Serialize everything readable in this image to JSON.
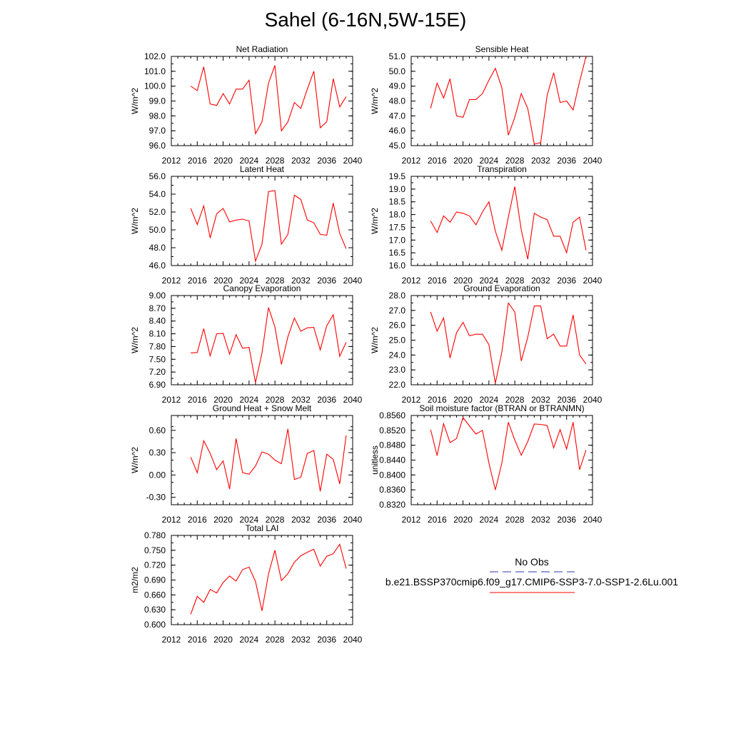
{
  "figure": {
    "title": "Sahel (6-16N,5W-15E)",
    "line_color": "#ff0000",
    "obs_color": "#3333aa"
  },
  "legend": {
    "entries": [
      {
        "label": "No Obs",
        "style": "dashed",
        "color": "#3333aa"
      },
      {
        "label": "b.e21.BSSP370cmip6.f09_g17.CMIP6-SSP3-7.0-SSP1-2.6Lu.001",
        "style": "solid",
        "color": "#ff0000"
      }
    ]
  },
  "chart_data": [
    {
      "type": "line",
      "title": "Net Radiation",
      "ylabel": "W/m^2",
      "xlim": [
        2012,
        2040
      ],
      "xticks": [
        2012,
        2016,
        2020,
        2024,
        2028,
        2032,
        2036,
        2040
      ],
      "ylim": [
        96.0,
        102.0
      ],
      "yticks": [
        "96.0",
        "97.0",
        "98.0",
        "99.0",
        "100.0",
        "101.0",
        "102.0"
      ],
      "x": [
        2015,
        2016,
        2017,
        2018,
        2019,
        2020,
        2021,
        2022,
        2023,
        2024,
        2025,
        2026,
        2027,
        2028,
        2029,
        2030,
        2031,
        2032,
        2033,
        2034,
        2035,
        2036,
        2037,
        2038,
        2039
      ],
      "series": [
        {
          "name": "b.e21.BSSP370cmip6.f09_g17.CMIP6-SSP3-7.0-SSP1-2.6Lu.001",
          "values": [
            100.0,
            99.7,
            101.3,
            98.8,
            98.7,
            99.5,
            98.8,
            99.8,
            99.8,
            100.4,
            96.8,
            97.6,
            100.2,
            101.4,
            97.0,
            97.6,
            98.9,
            98.5,
            99.8,
            101.0,
            97.2,
            97.6,
            100.5,
            98.6,
            99.3
          ]
        }
      ]
    },
    {
      "type": "line",
      "title": "Sensible Heat",
      "ylabel": "W/m^2",
      "xlim": [
        2012,
        2040
      ],
      "xticks": [
        2012,
        2016,
        2020,
        2024,
        2028,
        2032,
        2036,
        2040
      ],
      "ylim": [
        45.0,
        51.0
      ],
      "yticks": [
        "45.0",
        "46.0",
        "47.0",
        "48.0",
        "49.0",
        "50.0",
        "51.0"
      ],
      "x": [
        2015,
        2016,
        2017,
        2018,
        2019,
        2020,
        2021,
        2022,
        2023,
        2024,
        2025,
        2026,
        2027,
        2028,
        2029,
        2030,
        2031,
        2032,
        2033,
        2034,
        2035,
        2036,
        2037,
        2038,
        2039
      ],
      "series": [
        {
          "name": "b.e21.BSSP370cmip6.f09_g17.CMIP6-SSP3-7.0-SSP1-2.6Lu.001",
          "values": [
            47.5,
            49.2,
            48.2,
            49.5,
            47.0,
            46.9,
            48.1,
            48.1,
            48.5,
            49.4,
            50.2,
            48.9,
            45.7,
            46.9,
            48.5,
            47.5,
            45.1,
            45.2,
            48.4,
            49.9,
            47.9,
            48.0,
            47.4,
            49.3,
            51.0
          ]
        }
      ]
    },
    {
      "type": "line",
      "title": "Latent Heat",
      "ylabel": "W/m^2",
      "xlim": [
        2012,
        2040
      ],
      "xticks": [
        2012,
        2016,
        2020,
        2024,
        2028,
        2032,
        2036,
        2040
      ],
      "ylim": [
        46.0,
        56.0
      ],
      "yticks": [
        "46.0",
        "48.0",
        "50.0",
        "52.0",
        "54.0",
        "56.0"
      ],
      "x": [
        2015,
        2016,
        2017,
        2018,
        2019,
        2020,
        2021,
        2022,
        2023,
        2024,
        2025,
        2026,
        2027,
        2028,
        2029,
        2030,
        2031,
        2032,
        2033,
        2034,
        2035,
        2036,
        2037,
        2038,
        2039
      ],
      "series": [
        {
          "name": "b.e21.BSSP370cmip6.f09_g17.CMIP6-SSP3-7.0-SSP1-2.6Lu.001",
          "values": [
            52.4,
            50.6,
            52.7,
            49.1,
            51.8,
            52.4,
            50.9,
            51.1,
            51.2,
            51.0,
            46.5,
            48.4,
            54.3,
            54.4,
            48.4,
            49.5,
            53.9,
            53.4,
            51.1,
            50.8,
            49.5,
            49.4,
            53.0,
            49.6,
            47.9
          ]
        }
      ]
    },
    {
      "type": "line",
      "title": "Transpiration",
      "ylabel": "W/m^2",
      "xlim": [
        2012,
        2040
      ],
      "xticks": [
        2012,
        2016,
        2020,
        2024,
        2028,
        2032,
        2036,
        2040
      ],
      "ylim": [
        16.0,
        19.5
      ],
      "yticks": [
        "16.0",
        "16.5",
        "17.0",
        "17.5",
        "18.0",
        "18.5",
        "19.0",
        "19.5"
      ],
      "x": [
        2015,
        2016,
        2017,
        2018,
        2019,
        2020,
        2021,
        2022,
        2023,
        2024,
        2025,
        2026,
        2027,
        2028,
        2029,
        2030,
        2031,
        2032,
        2033,
        2034,
        2035,
        2036,
        2037,
        2038,
        2039
      ],
      "series": [
        {
          "name": "b.e21.BSSP370cmip6.f09_g17.CMIP6-SSP3-7.0-SSP1-2.6Lu.001",
          "values": [
            17.75,
            17.3,
            17.95,
            17.7,
            18.1,
            18.05,
            17.95,
            17.6,
            18.1,
            18.5,
            17.35,
            16.6,
            17.9,
            19.1,
            17.4,
            16.25,
            18.05,
            17.9,
            17.8,
            17.15,
            17.15,
            16.5,
            17.7,
            17.9,
            16.6
          ]
        }
      ]
    },
    {
      "type": "line",
      "title": "Canopy Evaporation",
      "ylabel": "W/m^2",
      "xlim": [
        2012,
        2040
      ],
      "xticks": [
        2012,
        2016,
        2020,
        2024,
        2028,
        2032,
        2036,
        2040
      ],
      "ylim": [
        6.9,
        9.0
      ],
      "yticks": [
        "6.90",
        "7.20",
        "7.50",
        "7.80",
        "8.10",
        "8.40",
        "8.70",
        "9.00"
      ],
      "x": [
        2015,
        2016,
        2017,
        2018,
        2019,
        2020,
        2021,
        2022,
        2023,
        2024,
        2025,
        2026,
        2027,
        2028,
        2029,
        2030,
        2031,
        2032,
        2033,
        2034,
        2035,
        2036,
        2037,
        2038,
        2039
      ],
      "series": [
        {
          "name": "b.e21.BSSP370cmip6.f09_g17.CMIP6-SSP3-7.0-SSP1-2.6Lu.001",
          "values": [
            7.65,
            7.66,
            8.22,
            7.58,
            8.1,
            8.11,
            7.62,
            8.08,
            7.76,
            7.78,
            6.95,
            7.65,
            8.72,
            8.26,
            7.38,
            8.03,
            8.47,
            8.16,
            8.24,
            8.25,
            7.72,
            8.29,
            8.55,
            7.57,
            7.9
          ]
        }
      ]
    },
    {
      "type": "line",
      "title": "Ground Evaporation",
      "ylabel": "W/m^2",
      "xlim": [
        2012,
        2040
      ],
      "xticks": [
        2012,
        2016,
        2020,
        2024,
        2028,
        2032,
        2036,
        2040
      ],
      "ylim": [
        22.0,
        28.0
      ],
      "yticks": [
        "22.0",
        "23.0",
        "24.0",
        "25.0",
        "26.0",
        "27.0",
        "28.0"
      ],
      "x": [
        2015,
        2016,
        2017,
        2018,
        2019,
        2020,
        2021,
        2022,
        2023,
        2024,
        2025,
        2026,
        2027,
        2028,
        2029,
        2030,
        2031,
        2032,
        2033,
        2034,
        2035,
        2036,
        2037,
        2038,
        2039
      ],
      "series": [
        {
          "name": "b.e21.BSSP370cmip6.f09_g17.CMIP6-SSP3-7.0-SSP1-2.6Lu.001",
          "values": [
            26.9,
            25.6,
            26.5,
            23.8,
            25.5,
            26.2,
            25.3,
            25.4,
            25.4,
            24.7,
            22.1,
            24.2,
            27.5,
            26.9,
            23.6,
            25.2,
            27.3,
            27.3,
            25.1,
            25.4,
            24.6,
            24.6,
            26.7,
            24.0,
            23.4
          ]
        }
      ]
    },
    {
      "type": "line",
      "title": "Ground Heat + Snow Melt",
      "ylabel": "W/m^2",
      "xlim": [
        2012,
        2040
      ],
      "xticks": [
        2012,
        2016,
        2020,
        2024,
        2028,
        2032,
        2036,
        2040
      ],
      "ylim": [
        -0.4,
        0.8
      ],
      "yticks": [
        "-0.30",
        "0.00",
        "0.30",
        "0.60"
      ],
      "ytick_values": [
        -0.3,
        0.0,
        0.3,
        0.6
      ],
      "x": [
        2015,
        2016,
        2017,
        2018,
        2019,
        2020,
        2021,
        2022,
        2023,
        2024,
        2025,
        2026,
        2027,
        2028,
        2029,
        2030,
        2031,
        2032,
        2033,
        2034,
        2035,
        2036,
        2037,
        2038,
        2039
      ],
      "series": [
        {
          "name": "b.e21.BSSP370cmip6.f09_g17.CMIP6-SSP3-7.0-SSP1-2.6Lu.001",
          "values": [
            0.24,
            0.03,
            0.46,
            0.29,
            0.07,
            0.19,
            -0.19,
            0.49,
            0.03,
            0.01,
            0.12,
            0.31,
            0.28,
            0.2,
            0.15,
            0.62,
            -0.06,
            -0.03,
            0.29,
            0.33,
            -0.22,
            0.28,
            0.21,
            -0.12,
            0.53
          ]
        }
      ]
    },
    {
      "type": "line",
      "title": "Soil moisture factor (BTRAN or BTRANMN)",
      "ylabel": "unitless",
      "xlim": [
        2012,
        2040
      ],
      "xticks": [
        2012,
        2016,
        2020,
        2024,
        2028,
        2032,
        2036,
        2040
      ],
      "ylim": [
        0.832,
        0.856
      ],
      "yticks": [
        "0.8320",
        "0.8360",
        "0.8400",
        "0.8440",
        "0.8480",
        "0.8520",
        "0.8560"
      ],
      "x": [
        2015,
        2016,
        2017,
        2018,
        2019,
        2020,
        2021,
        2022,
        2023,
        2024,
        2025,
        2026,
        2027,
        2028,
        2029,
        2030,
        2031,
        2032,
        2033,
        2034,
        2035,
        2036,
        2037,
        2038,
        2039
      ],
      "series": [
        {
          "name": "b.e21.BSSP370cmip6.f09_g17.CMIP6-SSP3-7.0-SSP1-2.6Lu.001",
          "values": [
            0.8522,
            0.8452,
            0.8538,
            0.8487,
            0.8498,
            0.8554,
            0.8532,
            0.851,
            0.852,
            0.8432,
            0.836,
            0.8432,
            0.8542,
            0.8494,
            0.8453,
            0.849,
            0.8537,
            0.8536,
            0.8533,
            0.8473,
            0.8522,
            0.847,
            0.8542,
            0.8414,
            0.8467
          ]
        }
      ]
    },
    {
      "type": "line",
      "title": "Total LAI",
      "ylabel": "m2/m2",
      "xlim": [
        2012,
        2040
      ],
      "xticks": [
        2012,
        2016,
        2020,
        2024,
        2028,
        2032,
        2036,
        2040
      ],
      "ylim": [
        0.6,
        0.78
      ],
      "yticks": [
        "0.600",
        "0.630",
        "0.660",
        "0.690",
        "0.720",
        "0.750",
        "0.780"
      ],
      "x": [
        2015,
        2016,
        2017,
        2018,
        2019,
        2020,
        2021,
        2022,
        2023,
        2024,
        2025,
        2026,
        2027,
        2028,
        2029,
        2030,
        2031,
        2032,
        2033,
        2034,
        2035,
        2036,
        2037,
        2038,
        2039
      ],
      "series": [
        {
          "name": "b.e21.BSSP370cmip6.f09_g17.CMIP6-SSP3-7.0-SSP1-2.6Lu.001",
          "values": [
            0.621,
            0.657,
            0.645,
            0.671,
            0.664,
            0.685,
            0.698,
            0.688,
            0.711,
            0.716,
            0.687,
            0.628,
            0.702,
            0.75,
            0.689,
            0.703,
            0.726,
            0.739,
            0.746,
            0.752,
            0.718,
            0.738,
            0.743,
            0.762,
            0.713
          ]
        }
      ]
    }
  ]
}
